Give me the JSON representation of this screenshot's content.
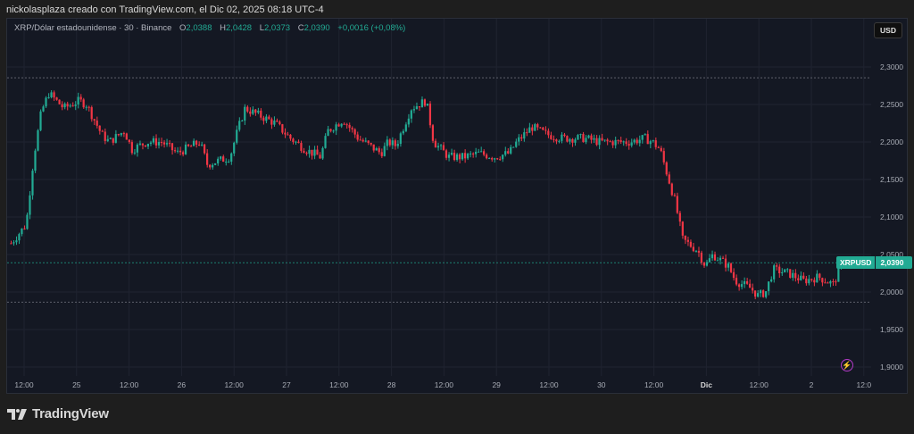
{
  "caption": "nickolasplaza creado con TradingView.com, el Dic 02, 2025 08:18 UTC-4",
  "legend": {
    "title": "XRP/Dólar estadounidense · 30 · Binance",
    "open_label": "O",
    "open": "2,0388",
    "high_label": "H",
    "high": "2,0428",
    "low_label": "L",
    "low": "2,0373",
    "close_label": "C",
    "close": "2,0390",
    "change": "+0,0016 (+0,08%)"
  },
  "currency_button": "USD",
  "last_price_tag": {
    "symbol": "XRPUSD",
    "price": "2,0390"
  },
  "brand": "TradingView",
  "colors": {
    "up": "#22ab94",
    "down": "#f23645",
    "background": "#141823",
    "grid": "#1f2330",
    "accent_alert": "#b23bc6"
  },
  "chart_data": {
    "type": "candlestick",
    "title": "XRP/Dólar estadounidense · 30 · Binance",
    "symbol": "XRPUSD",
    "interval": "30",
    "xlabel": "",
    "ylabel": "USD",
    "ylim": [
      1.88,
      2.36
    ],
    "y_ticks": [
      "2,3000",
      "2,2500",
      "2,2000",
      "2,1500",
      "2,1000",
      "2,0500",
      "2,0000",
      "1,9500",
      "1,9000"
    ],
    "x_ticks": [
      "12:00",
      "25",
      "12:00",
      "26",
      "12:00",
      "27",
      "12:00",
      "28",
      "12:00",
      "29",
      "12:00",
      "30",
      "12:00",
      "Dic",
      "12:00",
      "2",
      "12:0"
    ],
    "reference_lines": [
      2.2855,
      2.039,
      1.9865
    ],
    "grid": true,
    "last_close": 2.039,
    "ohlc_last": {
      "open": 2.0388,
      "high": 2.0428,
      "low": 2.0373,
      "close": 2.039
    },
    "path_close_approx": [
      [
        0,
        2.065
      ],
      [
        2,
        2.09
      ],
      [
        3,
        2.18
      ],
      [
        4,
        2.24
      ],
      [
        5,
        2.265
      ],
      [
        7,
        2.245
      ],
      [
        9,
        2.255
      ],
      [
        10,
        2.25
      ],
      [
        12,
        2.21
      ],
      [
        13,
        2.2
      ],
      [
        15,
        2.215
      ],
      [
        16,
        2.19
      ],
      [
        18,
        2.2
      ],
      [
        20,
        2.2
      ],
      [
        22,
        2.185
      ],
      [
        25,
        2.2
      ],
      [
        26,
        2.17
      ],
      [
        29,
        2.18
      ],
      [
        30,
        2.215
      ],
      [
        31,
        2.245
      ],
      [
        33,
        2.235
      ],
      [
        35,
        2.225
      ],
      [
        37,
        2.205
      ],
      [
        39,
        2.19
      ],
      [
        41,
        2.18
      ],
      [
        42,
        2.215
      ],
      [
        44,
        2.23
      ],
      [
        46,
        2.205
      ],
      [
        49,
        2.185
      ],
      [
        50,
        2.2
      ],
      [
        51,
        2.195
      ],
      [
        53,
        2.245
      ],
      [
        55,
        2.255
      ],
      [
        56,
        2.2
      ],
      [
        58,
        2.18
      ],
      [
        60,
        2.18
      ],
      [
        62,
        2.185
      ],
      [
        64,
        2.18
      ],
      [
        66,
        2.185
      ],
      [
        67,
        2.2
      ],
      [
        69,
        2.22
      ],
      [
        71,
        2.21
      ],
      [
        73,
        2.205
      ],
      [
        76,
        2.205
      ],
      [
        78,
        2.2
      ],
      [
        80,
        2.2
      ],
      [
        82,
        2.2
      ],
      [
        84,
        2.205
      ],
      [
        85,
        2.2
      ],
      [
        86,
        2.19
      ],
      [
        88,
        2.12
      ],
      [
        89,
        2.07
      ],
      [
        91,
        2.055
      ],
      [
        92,
        2.035
      ],
      [
        93,
        2.05
      ],
      [
        95,
        2.035
      ],
      [
        96,
        2.015
      ],
      [
        98,
        2.005
      ],
      [
        99,
        1.995
      ],
      [
        100,
        2.0
      ],
      [
        101,
        2.03
      ],
      [
        103,
        2.025
      ],
      [
        105,
        2.015
      ],
      [
        107,
        2.02
      ],
      [
        109,
        2.01
      ],
      [
        110,
        2.039
      ]
    ]
  }
}
